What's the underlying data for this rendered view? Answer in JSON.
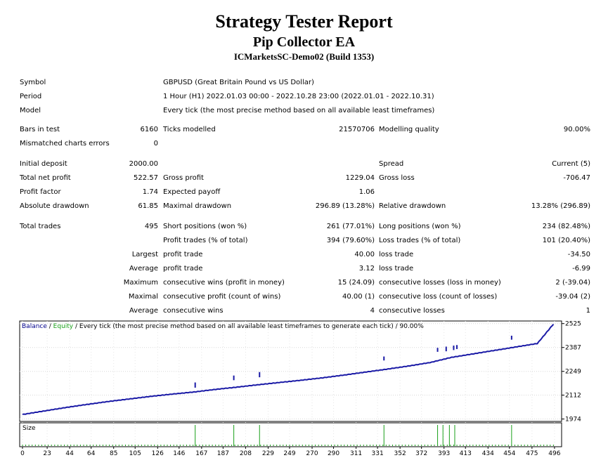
{
  "header": {
    "title": "Strategy Tester Report",
    "ea_name": "Pip Collector EA",
    "server": "ICMarketsSC-Demo02 (Build 1353)"
  },
  "info": {
    "symbol_label": "Symbol",
    "symbol": "GBPUSD (Great Britain Pound vs US Dollar)",
    "period_label": "Period",
    "period": "1 Hour (H1) 2022.01.03 00:00 - 2022.10.28 23:00 (2022.01.01 - 2022.10.31)",
    "model_label": "Model",
    "model": "Every tick (the most precise method based on all available least timeframes)"
  },
  "stats": {
    "bars_label": "Bars in test",
    "bars": "6160",
    "ticks_label": "Ticks modelled",
    "ticks": "21570706",
    "quality_label": "Modelling quality",
    "quality": "90.00%",
    "mismatch_label": "Mismatched charts errors",
    "mismatch": "0",
    "deposit_label": "Initial deposit",
    "deposit": "2000.00",
    "spread_label": "Spread",
    "spread": "Current (5)",
    "net_label": "Total net profit",
    "net": "522.57",
    "gross_profit_label": "Gross profit",
    "gross_profit": "1229.04",
    "gross_loss_label": "Gross loss",
    "gross_loss": "-706.47",
    "pf_label": "Profit factor",
    "pf": "1.74",
    "payoff_label": "Expected payoff",
    "payoff": "1.06",
    "abs_dd_label": "Absolute drawdown",
    "abs_dd": "61.85",
    "max_dd_label": "Maximal drawdown",
    "max_dd": "296.89 (13.28%)",
    "rel_dd_label": "Relative drawdown",
    "rel_dd": "13.28% (296.89)",
    "trades_label": "Total trades",
    "trades": "495",
    "short_label": "Short positions (won %)",
    "short": "261 (77.01%)",
    "long_label": "Long positions (won %)",
    "long": "234 (82.48%)",
    "profit_trades_label": "Profit trades (% of total)",
    "profit_trades": "394 (79.60%)",
    "loss_trades_label": "Loss trades (% of total)",
    "loss_trades": "101 (20.40%)",
    "largest_label": "Largest",
    "largest_profit_label": "profit trade",
    "largest_profit": "40.00",
    "largest_loss_label": "loss trade",
    "largest_loss": "-34.50",
    "average_label": "Average",
    "average_profit_label": "profit trade",
    "average_profit": "3.12",
    "average_loss_label": "loss trade",
    "average_loss": "-6.99",
    "maximum_label": "Maximum",
    "max_cons_wins_label": "consecutive wins (profit in money)",
    "max_cons_wins": "15 (24.09)",
    "max_cons_losses_label": "consecutive losses (loss in money)",
    "max_cons_losses": "2 (-39.04)",
    "maximal_label": "Maximal",
    "maximal_cons_profit_label": "consecutive profit (count of wins)",
    "maximal_cons_profit": "40.00 (1)",
    "maximal_cons_loss_label": "consecutive loss (count of losses)",
    "maximal_cons_loss": "-39.04 (2)",
    "avg_label": "Average",
    "avg_cons_wins_label": "consecutive wins",
    "avg_cons_wins": "4",
    "avg_cons_losses_label": "consecutive losses",
    "avg_cons_losses": "1"
  },
  "chart_data": {
    "type": "line",
    "legend": {
      "balance": "Balance",
      "separator": " / ",
      "equity": "Equity",
      "note": " / Every tick (the most precise method based on all available least timeframes to generate each tick) / 90.00%"
    },
    "size_label": "Size",
    "x_ticks": [
      0,
      23,
      44,
      64,
      85,
      105,
      126,
      146,
      167,
      187,
      208,
      229,
      249,
      270,
      290,
      311,
      331,
      352,
      372,
      393,
      413,
      434,
      454,
      475,
      496
    ],
    "x_range": [
      0,
      500
    ],
    "y_ticks": [
      1974,
      2112,
      2249,
      2387,
      2525
    ],
    "y_range": [
      1960,
      2540
    ],
    "balance": [
      [
        0,
        2000
      ],
      [
        20,
        2020
      ],
      [
        40,
        2040
      ],
      [
        60,
        2058
      ],
      [
        80,
        2075
      ],
      [
        100,
        2090
      ],
      [
        120,
        2105
      ],
      [
        140,
        2118
      ],
      [
        160,
        2130
      ],
      [
        180,
        2145
      ],
      [
        200,
        2158
      ],
      [
        220,
        2172
      ],
      [
        240,
        2185
      ],
      [
        260,
        2198
      ],
      [
        280,
        2212
      ],
      [
        300,
        2228
      ],
      [
        320,
        2245
      ],
      [
        340,
        2262
      ],
      [
        360,
        2280
      ],
      [
        380,
        2300
      ],
      [
        400,
        2330
      ],
      [
        420,
        2350
      ],
      [
        440,
        2370
      ],
      [
        460,
        2390
      ],
      [
        480,
        2410
      ],
      [
        495,
        2522
      ]
    ],
    "equity_dips": [
      [
        161,
        2185,
        2155
      ],
      [
        197,
        2225,
        2198
      ],
      [
        221,
        2245,
        2215
      ],
      [
        337,
        2335,
        2312
      ],
      [
        387,
        2385,
        2362
      ],
      [
        395,
        2392,
        2365
      ],
      [
        402,
        2398,
        2372
      ],
      [
        405,
        2401,
        2378
      ],
      [
        456,
        2455,
        2432
      ]
    ],
    "size_bars": [
      [
        161,
        1.0
      ],
      [
        197,
        1.0
      ],
      [
        221,
        1.0
      ],
      [
        337,
        1.0
      ],
      [
        387,
        1.0
      ],
      [
        392,
        1.0
      ],
      [
        398,
        1.0
      ],
      [
        403,
        1.0
      ],
      [
        456,
        1.0
      ]
    ]
  }
}
